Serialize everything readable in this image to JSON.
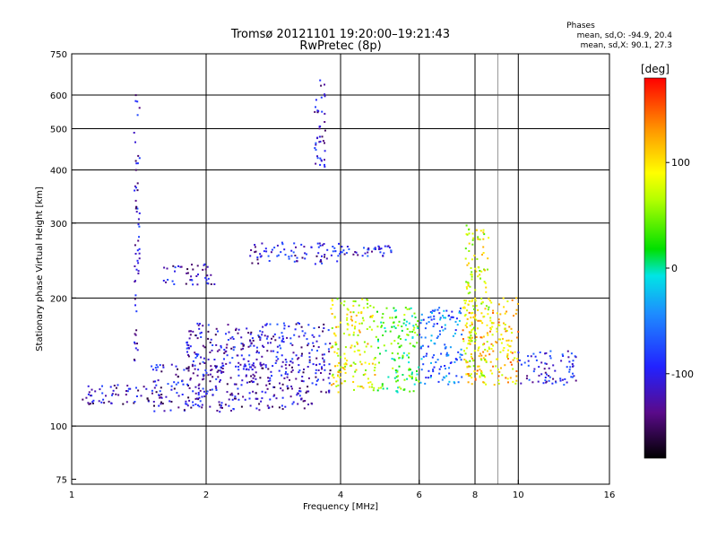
{
  "chart_data": {
    "type": "scatter",
    "title": "Tromsø 20121101 19:20:00–19:21:43",
    "subtitle": "RwPretec (8p)",
    "xlabel": "Frequency [MHz]",
    "ylabel": "Stationary phase Virtual Height [km]",
    "xscale": "log",
    "yscale": "log",
    "xlim": [
      1,
      16
    ],
    "ylim": [
      73,
      750
    ],
    "x_ticks": [
      1,
      2,
      4,
      6,
      8,
      10,
      16
    ],
    "y_ticks": [
      75,
      100,
      200,
      300,
      400,
      500,
      600,
      750
    ],
    "y_major_grid": [
      100,
      200,
      300,
      400,
      500,
      600
    ],
    "x_major_grid": [
      2,
      4,
      6,
      8,
      10
    ],
    "x_minor_grid": [
      9
    ],
    "grid": true,
    "colorbar": {
      "label": "[deg]",
      "range": [
        -180,
        180
      ],
      "ticks": [
        100,
        0,
        -100
      ],
      "tick_labels": [
        "100",
        "0",
        "-100"
      ]
    },
    "stats": {
      "title": "Phases",
      "line_o": "mean, sd,O: -94.9, 20.4",
      "line_x": "mean, sd,X:  90.1, 27.3"
    },
    "series": [
      {
        "comment_free_points": "clusters representing echo traces",
        "clusters": [
          {
            "x": [
              1.05,
              1.5
            ],
            "y": [
              112,
              125
            ],
            "phase": -120
          },
          {
            "x": [
              1.5,
              3.5
            ],
            "y": [
              108,
              120
            ],
            "phase": -120
          },
          {
            "x": [
              1.5,
              3.8
            ],
            "y": [
              120,
              140
            ],
            "phase": -115
          },
          {
            "x": [
              1.8,
              3.8
            ],
            "y": [
              135,
              175
            ],
            "phase": -110
          },
          {
            "x": [
              3.8,
              4.8
            ],
            "y": [
              120,
              200
            ],
            "phase": 90
          },
          {
            "x": [
              4.8,
              6.0
            ],
            "y": [
              120,
              190
            ],
            "phase": 30
          },
          {
            "x": [
              6.0,
              7.5
            ],
            "y": [
              125,
              190
            ],
            "phase": -60
          },
          {
            "x": [
              7.5,
              10.0
            ],
            "y": [
              125,
              200
            ],
            "phase": 110
          },
          {
            "x": [
              10.0,
              13.5
            ],
            "y": [
              125,
              150
            ],
            "phase": -100
          },
          {
            "x": [
              2.5,
              4.0
            ],
            "y": [
              240,
              270
            ],
            "phase": -110
          },
          {
            "x": [
              4.0,
              5.2
            ],
            "y": [
              250,
              265
            ],
            "phase": -100
          },
          {
            "x": [
              1.6,
              2.1
            ],
            "y": [
              215,
              240
            ],
            "phase": -115
          },
          {
            "x": [
              3.5,
              3.7
            ],
            "y": [
              380,
              650
            ],
            "phase": -110
          },
          {
            "x": [
              1.38,
              1.42
            ],
            "y": [
              140,
              600
            ],
            "phase": -110
          },
          {
            "x": [
              7.6,
              8.6
            ],
            "y": [
              130,
              300
            ],
            "phase": 80
          }
        ]
      }
    ]
  }
}
